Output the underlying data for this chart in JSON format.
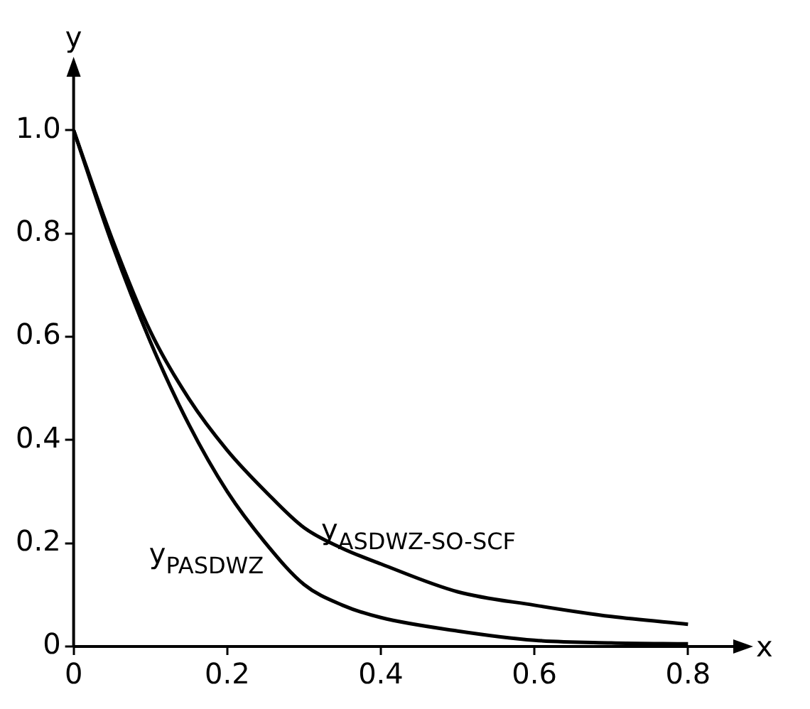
{
  "chart_data": {
    "type": "line",
    "xlabel": "x",
    "ylabel": "y",
    "xlim": [
      0,
      0.87
    ],
    "ylim": [
      0,
      1.12
    ],
    "xticks": [
      0,
      0.2,
      0.4,
      0.6,
      0.8
    ],
    "yticks": [
      0,
      0.2,
      0.4,
      0.6,
      0.8,
      {
        "value": 1,
        "label": "1.0"
      }
    ],
    "grid": false,
    "legend": false,
    "marker": "none",
    "line_style": "solid",
    "series": [
      {
        "name": "y$_{ASDWZ-SO-SCF}$",
        "color": "#000000",
        "x": [
          0,
          0.05,
          0.1,
          0.15,
          0.2,
          0.25,
          0.3,
          0.35,
          0.4,
          0.5,
          0.6,
          0.7,
          0.8
        ],
        "values": [
          1.0,
          0.79,
          0.61,
          0.48,
          0.38,
          0.3,
          0.23,
          0.19,
          0.16,
          0.106,
          0.08,
          0.058,
          0.043
        ]
      },
      {
        "name": "y$_{PASDWZ}$",
        "color": "#000000",
        "x": [
          0,
          0.05,
          0.1,
          0.15,
          0.2,
          0.25,
          0.3,
          0.35,
          0.4,
          0.5,
          0.6,
          0.7,
          0.8
        ],
        "values": [
          1.0,
          0.78,
          0.59,
          0.43,
          0.3,
          0.2,
          0.12,
          0.08,
          0.056,
          0.03,
          0.012,
          0.007,
          0.005
        ]
      }
    ]
  }
}
